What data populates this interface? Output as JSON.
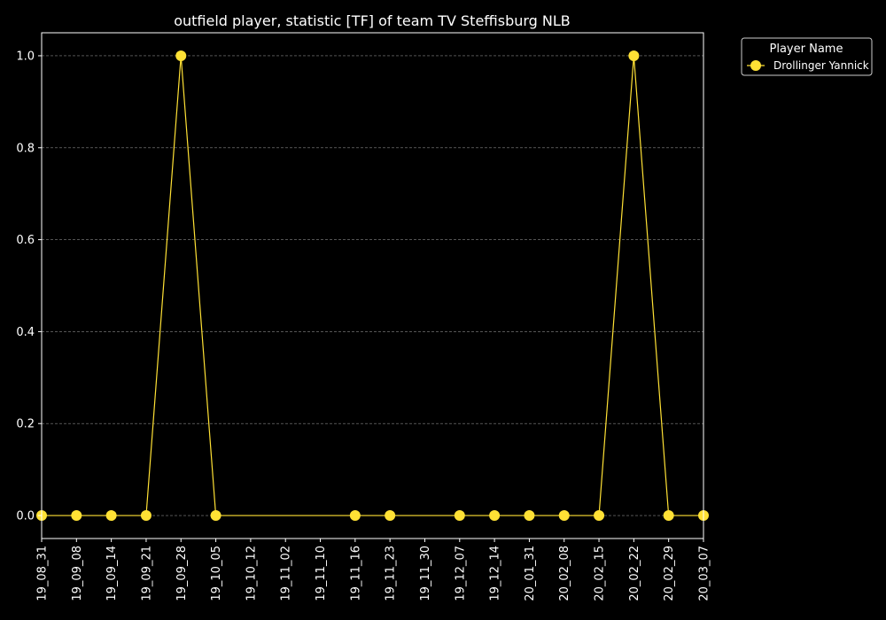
{
  "chart_data": {
    "type": "line",
    "title": "outfield player, statistic [TF] of team TV Steffisburg NLB",
    "xlabel": "",
    "ylabel": "",
    "x_ticks": [
      "19_08_31",
      "19_09_08",
      "19_09_14",
      "19_09_21",
      "19_09_28",
      "19_10_05",
      "19_10_12",
      "19_11_02",
      "19_11_10",
      "19_11_16",
      "19_11_23",
      "19_11_30",
      "19_12_07",
      "19_12_14",
      "20_01_31",
      "20_02_08",
      "20_02_15",
      "20_02_22",
      "20_02_29",
      "20_03_07"
    ],
    "y_ticks": [
      "0.0",
      "0.2",
      "0.4",
      "0.6",
      "0.8",
      "1.0"
    ],
    "ylim": [
      -0.05,
      1.05
    ],
    "grid": "horizontal dashed",
    "legend": {
      "title": "Player Name",
      "placement": "outside upper-right"
    },
    "series": [
      {
        "name": "Drollinger Yannick",
        "color": "#ffe135",
        "points": [
          {
            "x": "19_08_31",
            "y": 0
          },
          {
            "x": "19_09_08",
            "y": 0
          },
          {
            "x": "19_09_14",
            "y": 0
          },
          {
            "x": "19_09_21",
            "y": 0
          },
          {
            "x": "19_09_28",
            "y": 1
          },
          {
            "x": "19_10_05",
            "y": 0
          },
          {
            "x": "19_11_16",
            "y": 0
          },
          {
            "x": "19_11_23",
            "y": 0
          },
          {
            "x": "19_12_07",
            "y": 0
          },
          {
            "x": "19_12_14",
            "y": 0
          },
          {
            "x": "20_01_31",
            "y": 0
          },
          {
            "x": "20_02_08",
            "y": 0
          },
          {
            "x": "20_02_15",
            "y": 0
          },
          {
            "x": "20_02_22",
            "y": 1
          },
          {
            "x": "20_02_29",
            "y": 0
          },
          {
            "x": "20_03_07",
            "y": 0
          }
        ]
      }
    ]
  }
}
